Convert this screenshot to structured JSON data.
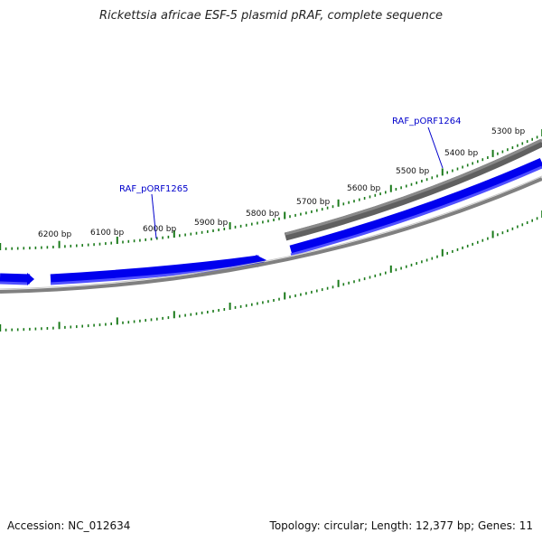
{
  "title": "Rickettsia africae ESF-5 plasmid pRAF, complete sequence",
  "footer": {
    "accession": "Accession: NC_012634",
    "summary": "Topology: circular; Length: 12,377 bp; Genes: 11"
  },
  "ruler": {
    "ticks": [
      {
        "label": "5300 bp"
      },
      {
        "label": "5400 bp"
      },
      {
        "label": "5500 bp"
      },
      {
        "label": "5600 bp"
      },
      {
        "label": "5700 bp"
      },
      {
        "label": "5800 bp"
      },
      {
        "label": "5900 bp"
      },
      {
        "label": "6000 bp"
      },
      {
        "label": "6100 bp"
      },
      {
        "label": "6200 bp"
      }
    ]
  },
  "genes": [
    {
      "label": "RAF_pORF1264"
    },
    {
      "label": "RAF_pORF1265"
    }
  ],
  "colors": {
    "forward_gene": "#0000ee",
    "forward_gene_light": "#5050ff",
    "backbone": "#808080",
    "backbone_dark": "#606060",
    "ticks": "#1a7a1a",
    "gene_label": "#0000cc"
  }
}
